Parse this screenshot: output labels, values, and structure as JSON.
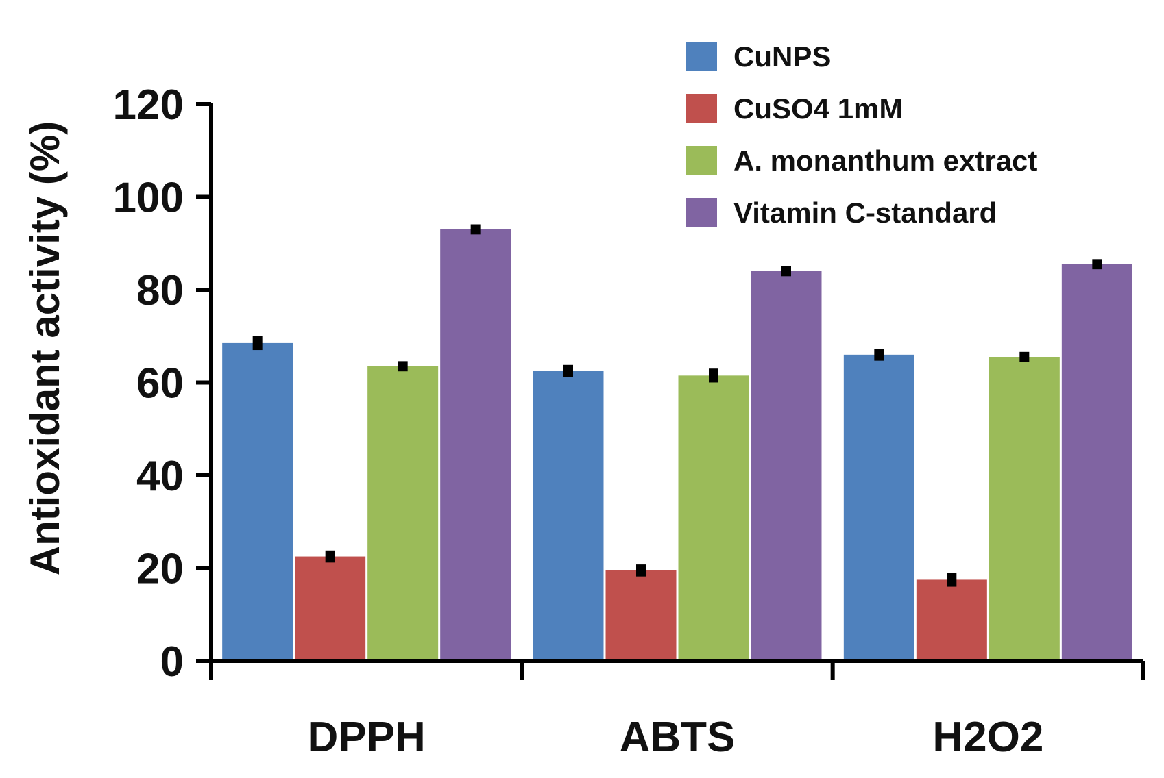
{
  "chart_data": {
    "type": "bar",
    "title": "",
    "xlabel": "",
    "ylabel": "Antioxidant activity (%)",
    "ylim": [
      0,
      120
    ],
    "yticks": [
      0,
      20,
      40,
      60,
      80,
      100,
      120
    ],
    "categories": [
      "DPPH",
      "ABTS",
      "H2O2"
    ],
    "error_bars": true,
    "legend_position": "top-right",
    "series": [
      {
        "name": "CuNPS",
        "color": "#4f81bd",
        "values": [
          68.5,
          62.5,
          66.0
        ],
        "errors": [
          1.2,
          1.0,
          1.0
        ]
      },
      {
        "name": "CuSO4 1mM",
        "color": "#c0504d",
        "values": [
          22.5,
          19.5,
          17.5
        ],
        "errors": [
          1.0,
          1.0,
          1.2
        ]
      },
      {
        "name": "A. monanthum extract",
        "color": "#9bbb59",
        "values": [
          63.5,
          61.5,
          65.5
        ],
        "errors": [
          0.8,
          1.2,
          0.8
        ]
      },
      {
        "name": "Vitamin C-standard",
        "color": "#8064a2",
        "values": [
          93.0,
          84.0,
          85.5
        ],
        "errors": [
          0.8,
          0.8,
          0.8
        ]
      }
    ]
  }
}
